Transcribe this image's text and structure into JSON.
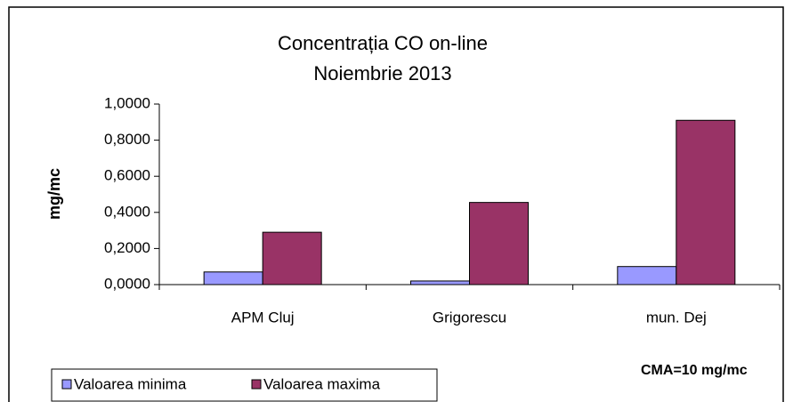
{
  "chart_data": {
    "type": "bar",
    "title": "Concentrația CO on-line",
    "subtitle": "Noiembrie 2013",
    "y_label": "mg/mc",
    "annotation": "CMA=10 mg/mc",
    "categories": [
      "APM Cluj",
      "Grigorescu",
      "mun. Dej"
    ],
    "series": [
      {
        "name": "Valoarea minima",
        "color": "#9999ff",
        "values": [
          0.07,
          0.02,
          0.1
        ]
      },
      {
        "name": "Valoarea maxima",
        "color": "#993366",
        "values": [
          0.29,
          0.455,
          0.91
        ]
      }
    ],
    "ylim": [
      0,
      1
    ],
    "yticks": [
      {
        "value": 0,
        "label": "0,0000"
      },
      {
        "value": 0.2,
        "label": "0,2000"
      },
      {
        "value": 0.4,
        "label": "0,4000"
      },
      {
        "value": 0.6,
        "label": "0,6000"
      },
      {
        "value": 0.8,
        "label": "0,8000"
      },
      {
        "value": 1,
        "label": "1,0000"
      }
    ],
    "grid": false,
    "legend": "bottom-left"
  }
}
